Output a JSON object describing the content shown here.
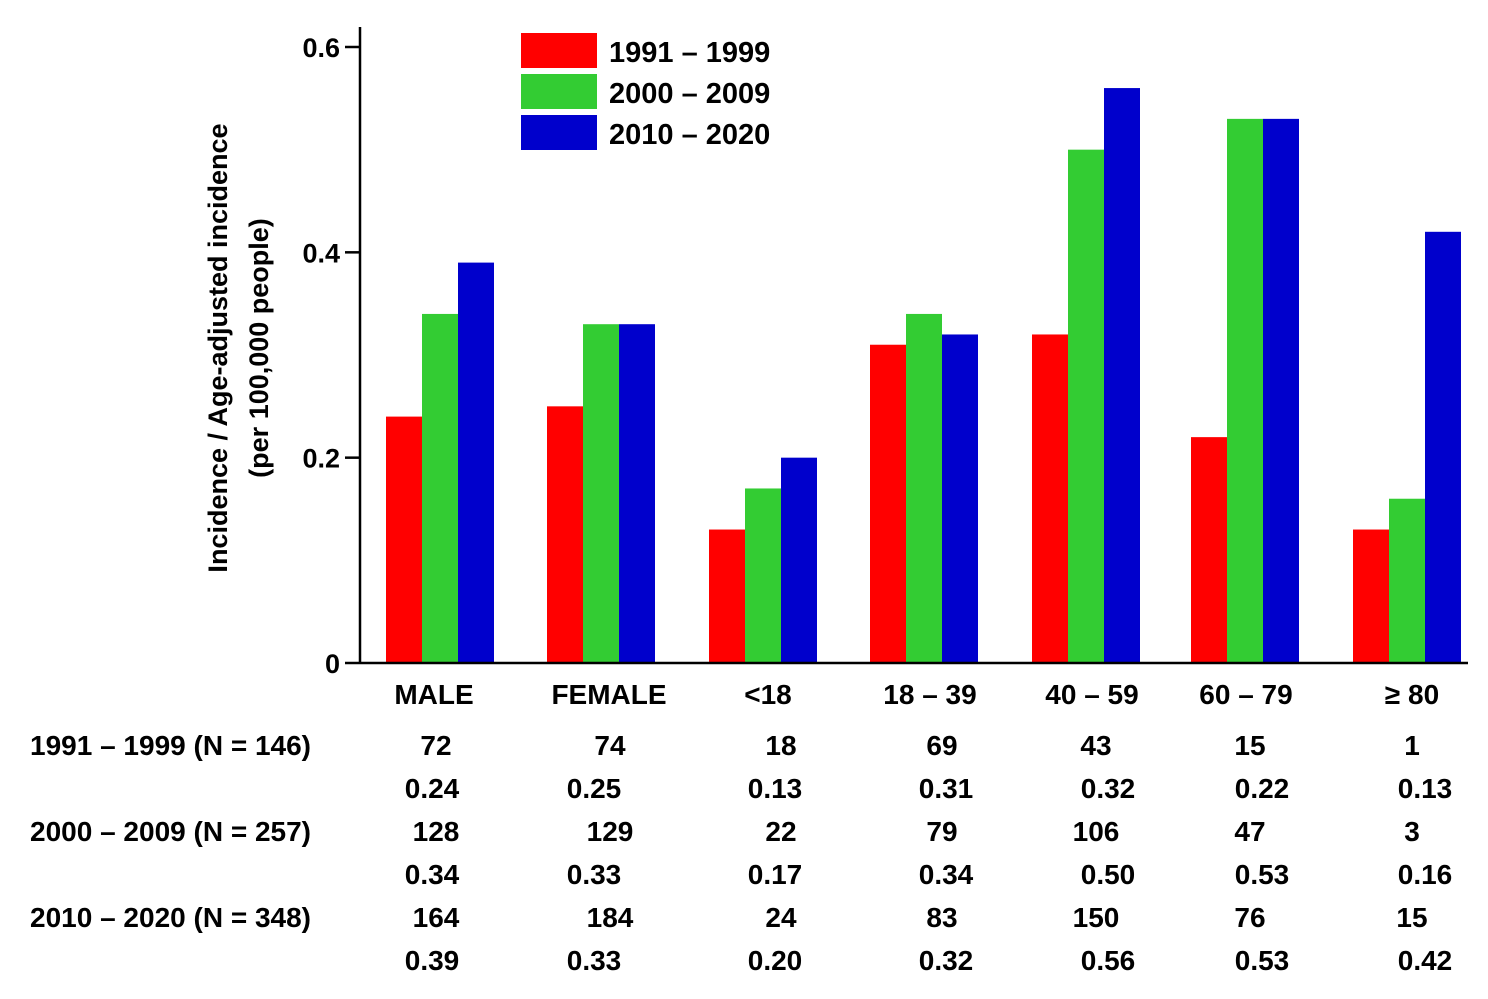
{
  "chart_data": {
    "type": "bar",
    "title": "",
    "ylabel_line1": "Incidence / Age-adjusted incidence",
    "ylabel_line2": "(per 100,000 people)",
    "xlabel": "",
    "ylim": [
      0,
      0.6
    ],
    "yticks": [
      0,
      0.2,
      0.4,
      0.6
    ],
    "ytick_labels": [
      "0",
      "0.2",
      "0.4",
      "0.6"
    ],
    "grid": false,
    "legend_position": "top-center",
    "categories": [
      "MALE",
      "FEMALE",
      "<18",
      "18 – 39",
      "40 – 59",
      "60 – 79",
      "≥ 80"
    ],
    "series": [
      {
        "name": "1991 – 1999",
        "color": "#ff0000",
        "values": [
          0.24,
          0.25,
          0.13,
          0.31,
          0.32,
          0.22,
          0.13
        ]
      },
      {
        "name": "2000 – 2009",
        "color": "#33cc33",
        "values": [
          0.34,
          0.33,
          0.17,
          0.34,
          0.5,
          0.53,
          0.16
        ]
      },
      {
        "name": "2010 – 2020",
        "color": "#0000cc",
        "values": [
          0.39,
          0.33,
          0.2,
          0.32,
          0.56,
          0.53,
          0.42
        ]
      }
    ]
  },
  "table": [
    {
      "label": "1991 – 1999 (N = 146)",
      "counts": [
        "72",
        "74",
        "18",
        "69",
        "43",
        "15",
        "1"
      ],
      "rates": [
        "0.24",
        "0.25",
        "0.13",
        "0.31",
        "0.32",
        "0.22",
        "0.13"
      ]
    },
    {
      "label": "2000 – 2009 (N = 257)",
      "counts": [
        "128",
        "129",
        "22",
        "79",
        "106",
        "47",
        "3"
      ],
      "rates": [
        "0.34",
        "0.33",
        "0.17",
        "0.34",
        "0.50",
        "0.53",
        "0.16"
      ]
    },
    {
      "label": "2010 – 2020 (N = 348)",
      "counts": [
        "164",
        "184",
        "24",
        "83",
        "150",
        "76",
        "15"
      ],
      "rates": [
        "0.39",
        "0.33",
        "0.20",
        "0.32",
        "0.56",
        "0.53",
        "0.42"
      ]
    }
  ]
}
